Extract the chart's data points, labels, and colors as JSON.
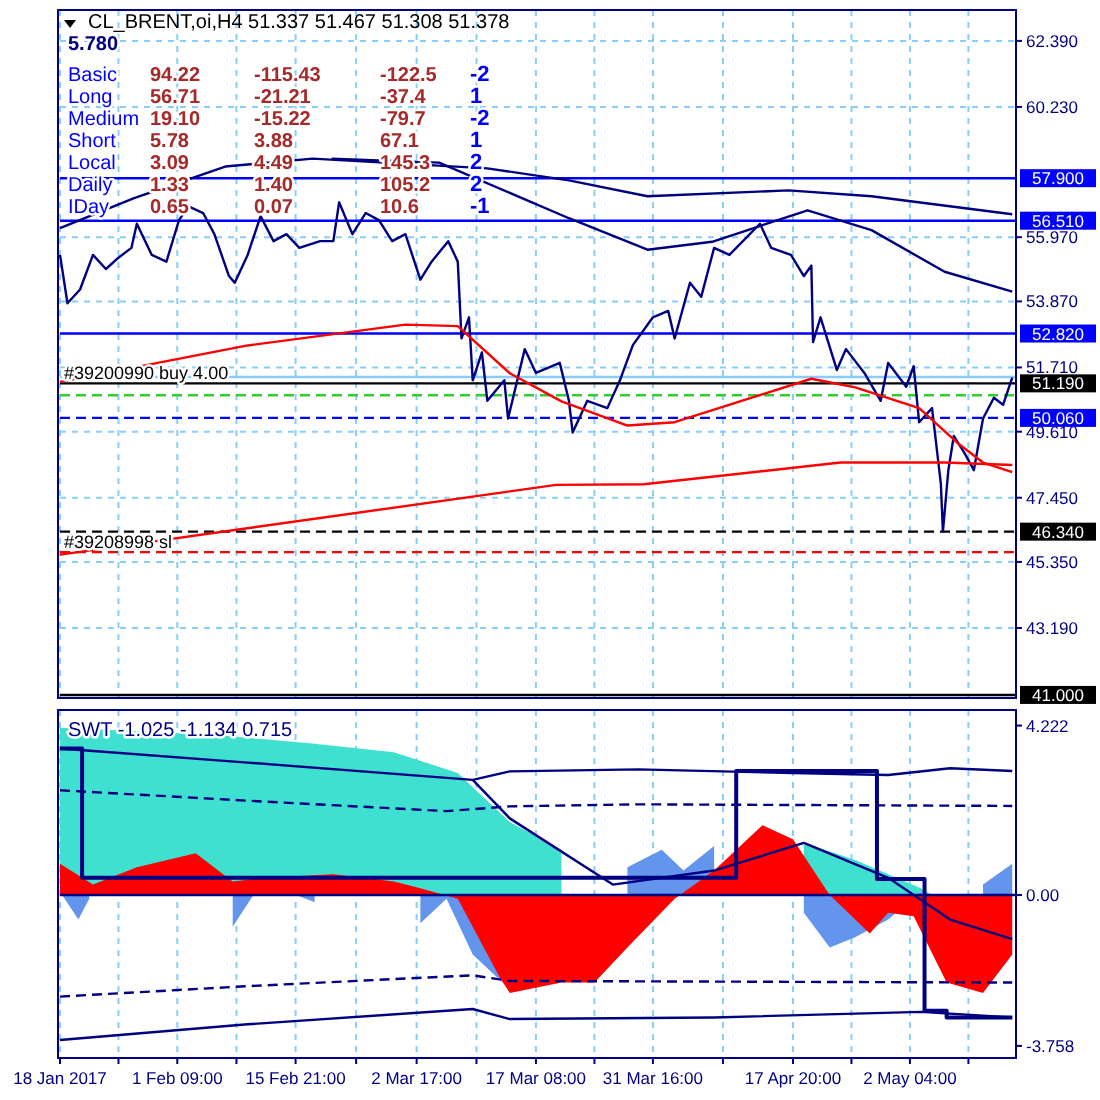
{
  "chart_data": [
    {
      "type": "line",
      "title": "CL_BRENT,oi,H4 51.337 51.467 51.308 51.378",
      "xlim": [
        "2017-01-18T00:00",
        "2017-05-15T04:00"
      ],
      "ylim": [
        40.9,
        63.4
      ],
      "xticks": [
        {
          "value": "2017-01-18T00:00",
          "label": null
        },
        {
          "value": "2017-01-25T04:00",
          "label": null
        },
        {
          "value": "2017-02-01T09:00",
          "label": null
        },
        {
          "value": "2017-02-08T15:00",
          "label": null
        },
        {
          "value": "2017-02-15T21:00",
          "label": null
        },
        {
          "value": "2017-02-23T07:00",
          "label": null
        },
        {
          "value": "2017-03-02T17:00",
          "label": null
        },
        {
          "value": "2017-03-10T01:00",
          "label": null
        },
        {
          "value": "2017-03-17T08:00",
          "label": null
        },
        {
          "value": "2017-03-24T12:00",
          "label": null
        },
        {
          "value": "2017-03-31T16:00",
          "label": null
        },
        {
          "value": "2017-04-09T06:00",
          "label": null
        },
        {
          "value": "2017-04-17T20:00",
          "label": null
        },
        {
          "value": "2017-04-25T00:00",
          "label": null
        },
        {
          "value": "2017-05-02T04:00",
          "label": null
        },
        {
          "value": "2017-05-09T08:00",
          "label": null
        }
      ],
      "yticks": [
        {
          "value": 62.39,
          "label": "62.390"
        },
        {
          "value": 60.23,
          "label": "60.230"
        },
        {
          "value": 55.97,
          "label": "55.970"
        },
        {
          "value": 53.87,
          "label": "53.870"
        },
        {
          "value": 51.71,
          "label": "51.710"
        },
        {
          "value": 49.61,
          "label": "49.610"
        },
        {
          "value": 47.45,
          "label": "47.450"
        },
        {
          "value": 45.35,
          "label": "45.350"
        },
        {
          "value": 43.19,
          "label": "43.190"
        }
      ],
      "tick_labels": "y",
      "grid": true,
      "series": [
        {
          "color": "#000080",
          "x": [
            "2017-01-18T00:00",
            "2017-01-18T22:00",
            "2017-01-20T11:00",
            "2017-01-22T01:00",
            "2017-01-23T15:00",
            "2017-01-25T04:00",
            "2017-01-26T18:00",
            "2017-01-27T10:00",
            "2017-01-29T06:00",
            "2017-01-31T01:00",
            "2017-02-01T14:00",
            "2017-02-02T18:00",
            "2017-02-04T13:00",
            "2017-02-05T22:00",
            "2017-02-07T17:00",
            "2017-02-08T10:00",
            "2017-02-10T00:00",
            "2017-02-11T14:00",
            "2017-02-13T04:00",
            "2017-02-14T18:00",
            "2017-02-16T08:00",
            "2017-02-18T21:00",
            "2017-02-20T12:00",
            "2017-02-21T05:00",
            "2017-02-22T20:00",
            "2017-02-24T11:00",
            "2017-02-26T02:00",
            "2017-02-27T17:00",
            "2017-03-01T08:00",
            "2017-03-03T04:00",
            "2017-03-04T13:00",
            "2017-03-06T14:00",
            "2017-03-07T18:00",
            "2017-03-08T05:00",
            "2017-03-09T03:00",
            "2017-03-09T14:00",
            "2017-03-10T17:00",
            "2017-03-11T09:00",
            "2017-03-13T11:00",
            "2017-03-13T22:00",
            "2017-03-15T23:00",
            "2017-03-17T08:00",
            "2017-03-20T06:00",
            "2017-03-21T09:00",
            "2017-03-21T20:00",
            "2017-03-23T15:00",
            "2017-03-26T02:00",
            "2017-03-27T15:00",
            "2017-03-29T05:00",
            "2017-03-31T16:00",
            "2017-04-02T13:00",
            "2017-04-03T08:00",
            "2017-04-05T05:00",
            "2017-04-06T14:00",
            "2017-04-08T04:00",
            "2017-04-10T01:00",
            "2017-04-13T19:00",
            "2017-04-15T04:00",
            "2017-04-17T14:00",
            "2017-04-19T04:00",
            "2017-04-20T02:00",
            "2017-04-20T07:00",
            "2017-04-21T05:00",
            "2017-04-23T05:00",
            "2017-04-24T08:00",
            "2017-04-26T14:00",
            "2017-04-28T14:00",
            "2017-04-29T12:00",
            "2017-05-01T17:00",
            "2017-05-02T15:00",
            "2017-05-03T07:00",
            "2017-05-04T21:00",
            "2017-05-05T23:00",
            "2017-05-06T05:00",
            "2017-05-06T21:00",
            "2017-05-07T13:00",
            "2017-05-08T21:00",
            "2017-05-10T00:00",
            "2017-05-11T03:00",
            "2017-05-12T11:00",
            "2017-05-13T14:00",
            "2017-05-14T17:00"
          ],
          "values": [
            55.39,
            53.81,
            54.26,
            55.39,
            54.93,
            55.3,
            55.62,
            56.41,
            55.39,
            55.17,
            56.53,
            56.98,
            56.76,
            56.07,
            54.7,
            54.48,
            55.39,
            56.66,
            55.84,
            56.07,
            55.62,
            55.84,
            55.84,
            57.11,
            56.07,
            56.76,
            56.53,
            55.84,
            56.07,
            54.58,
            55.17,
            55.84,
            55.17,
            52.66,
            53.35,
            51.29,
            52.2,
            50.62,
            51.29,
            50.04,
            52.31,
            51.53,
            51.86,
            50.62,
            49.58,
            50.62,
            50.38,
            51.29,
            52.44,
            53.35,
            53.56,
            52.66,
            54.48,
            54.02,
            55.62,
            55.39,
            56.41,
            55.62,
            55.39,
            54.7,
            55.04,
            52.54,
            53.35,
            51.63,
            52.31,
            51.53,
            50.62,
            51.86,
            51.08,
            51.75,
            49.92,
            50.38,
            47.9,
            46.34,
            48.35,
            49.47,
            48.9,
            48.35,
            50.04,
            50.72,
            50.49,
            51.38
          ]
        },
        {
          "color": "#000080",
          "x": [
            "2017-01-18T00:00",
            "2017-01-27T00:00",
            "2017-02-07T06:00",
            "2017-02-17T23:00",
            "2017-03-11T09:00",
            "2017-03-21T09:00",
            "2017-03-31T00:00",
            "2017-04-17T07:00",
            "2017-04-27T11:00",
            "2017-05-14T17:00"
          ],
          "values": [
            56.27,
            57.24,
            58.28,
            58.54,
            58.22,
            57.83,
            57.31,
            57.5,
            57.31,
            56.72
          ]
        },
        {
          "color": "#000080",
          "x": [
            "2017-02-20T07:00",
            "2017-03-05T11:00",
            "2017-03-21T09:00",
            "2017-03-31T00:00",
            "2017-04-07T22:00",
            "2017-04-19T15:00",
            "2017-04-27T11:00",
            "2017-05-06T10:00",
            "2017-05-14T17:00"
          ],
          "values": [
            58.54,
            58.41,
            56.59,
            55.56,
            55.82,
            56.85,
            56.2,
            54.84,
            54.19
          ]
        },
        {
          "color": "#ff0000",
          "x": [
            "2017-01-18T00:00",
            "2017-02-10T00:00",
            "2017-03-01T08:00",
            "2017-03-07T18:00",
            "2017-03-14T03:00",
            "2017-03-20T11:00",
            "2017-03-28T13:00",
            "2017-04-03T08:00",
            "2017-04-20T02:00",
            "2017-04-25T11:00",
            "2017-05-03T07:00",
            "2017-05-08T00:00",
            "2017-05-11T03:00",
            "2017-05-14T17:00"
          ],
          "values": [
            51.24,
            52.43,
            53.11,
            53.06,
            51.52,
            50.6,
            49.81,
            49.92,
            51.34,
            51.06,
            50.38,
            49.24,
            48.6,
            48.29
          ]
        },
        {
          "color": "#ff0000",
          "x": [
            "2017-01-18T00:00",
            "2017-03-19T19:00",
            "2017-03-30T13:00",
            "2017-04-23T16:00",
            "2017-05-06T10:00",
            "2017-05-14T17:00"
          ],
          "values": [
            45.59,
            47.87,
            47.89,
            48.6,
            48.6,
            48.52
          ]
        }
      ],
      "ref_lines": [
        {
          "axis": "y",
          "value": 57.9,
          "label": "57.900",
          "color": "#0000ff",
          "line_style": "solid"
        },
        {
          "axis": "y",
          "value": 56.51,
          "label": "56.510",
          "color": "#0000ff",
          "line_style": "solid"
        },
        {
          "axis": "y",
          "value": 52.82,
          "label": "52.820",
          "color": "#0000ff",
          "line_style": "solid"
        },
        {
          "axis": "y",
          "value": 51.4,
          "color": "#87cefa",
          "line_style": "solid"
        },
        {
          "axis": "y",
          "value": 51.19,
          "label": "51.190",
          "color": "#000000",
          "line_style": "solid"
        },
        {
          "axis": "y",
          "value": 50.8,
          "color": "#32cd32",
          "line_style": "dashed"
        },
        {
          "axis": "y",
          "value": 50.06,
          "label": "50.060",
          "color": "#0000ff",
          "line_style": "dashed"
        },
        {
          "axis": "y",
          "value": 46.34,
          "label": "46.340",
          "color": "#000000",
          "line_style": "dashed"
        },
        {
          "axis": "y",
          "value": 45.67,
          "color": "#ff0000",
          "line_style": "dashed"
        },
        {
          "axis": "y",
          "value": 41.0,
          "label": "41.000",
          "color": "#000000",
          "line_style": "solid"
        }
      ],
      "annotations": [
        "5.780",
        "Basic 94.22 -115.43 -122.5 -2",
        "Long 56.71 -21.21 -37.4 1",
        "Medium 19.10 -15.22 -79.7 -2",
        "Short 5.78 3.88 67.1 1",
        "Local 3.09 4.49 145.3 2",
        "Daily 1.33 1.40 105.2 2",
        "IDay 0.65 0.07 10.6 -1",
        {
          "text": "#39200990 buy 4.00",
          "x": "2017-01-18T00:00",
          "y": 51.19
        },
        {
          "text": "#39208998 sl",
          "x": "2017-01-18T00:00",
          "y": 45.67
        }
      ]
    },
    {
      "type": "line",
      "title": "SWT -1.025 -1.134 0.715",
      "xlim": [
        "2017-01-18T00:00",
        "2017-05-15T04:00"
      ],
      "ylim": [
        -4.06,
        4.61
      ],
      "xticks": [
        {
          "value": "2017-01-18T00:00",
          "label": "18 Jan 2017"
        },
        {
          "value": "2017-01-25T04:00",
          "label": null
        },
        {
          "value": "2017-02-01T09:00",
          "label": "1 Feb 09:00"
        },
        {
          "value": "2017-02-08T15:00",
          "label": null
        },
        {
          "value": "2017-02-15T21:00",
          "label": "15 Feb 21:00"
        },
        {
          "value": "2017-02-23T07:00",
          "label": null
        },
        {
          "value": "2017-03-02T17:00",
          "label": "2 Mar 17:00"
        },
        {
          "value": "2017-03-10T01:00",
          "label": null
        },
        {
          "value": "2017-03-17T08:00",
          "label": "17 Mar 08:00"
        },
        {
          "value": "2017-03-24T12:00",
          "label": null
        },
        {
          "value": "2017-03-31T16:00",
          "label": "31 Mar 16:00"
        },
        {
          "value": "2017-04-09T06:00",
          "label": null
        },
        {
          "value": "2017-04-17T20:00",
          "label": "17 Apr 20:00"
        },
        {
          "value": "2017-04-25T00:00",
          "label": null
        },
        {
          "value": "2017-05-02T04:00",
          "label": "2 May 04:00"
        },
        {
          "value": "2017-05-09T08:00",
          "label": null
        }
      ],
      "yticks": [
        {
          "value": 4.222,
          "label": "4.222"
        },
        {
          "value": 0,
          "label": "0.00"
        },
        {
          "value": -3.758,
          "label": "-3.758"
        }
      ],
      "grid": "x",
      "series": [
        {
          "type": "area",
          "color": "#40e0d0",
          "x": [
            "2017-01-18T00:00",
            "2017-02-05T11:00",
            "2017-02-18T05:00",
            "2017-02-27T22:00",
            "2017-03-07T18:00",
            "2017-03-14T03:00",
            "2017-03-20T11:00",
            "2017-03-28T13:00",
            "2017-04-03T08:00",
            "2017-04-11T22:00",
            "2017-04-19T04:00",
            "2017-04-25T11:00",
            "2017-05-03T12:00",
            "2017-05-04T21:00",
            "2017-05-14T17:00"
          ],
          "values": [
            4.17,
            4.0,
            3.77,
            3.56,
            3.04,
            1.82,
            1.13,
            null,
            null,
            null,
            1.3,
            0.87,
            0.17,
            0,
            0
          ]
        },
        {
          "type": "area",
          "color": "#6495ed",
          "x": [
            "2017-01-18T00:00",
            "2017-01-20T06:00",
            "2017-01-21T14:00",
            "2017-01-25T04:00",
            "2017-01-29T06:00",
            "2017-02-03T15:00",
            "2017-02-08T04:00",
            "2017-02-11T19:00",
            "2017-02-18T05:00",
            "2017-02-24T16:00",
            "2017-03-03T04:00",
            "2017-03-06T09:00",
            "2017-03-09T14:00",
            "2017-03-14T03:00",
            "2017-03-18T06:00",
            "2017-03-22T06:00",
            "2017-03-24T12:00",
            "2017-03-28T13:00",
            "2017-04-01T18:00",
            "2017-04-04T10:00",
            "2017-04-08T04:00",
            "2017-04-11T22:00",
            "2017-04-15T17:00",
            "2017-04-19T04:00",
            "2017-04-22T08:00",
            "2017-04-25T11:00",
            "2017-04-29T12:00",
            "2017-05-03T12:00",
            "2017-05-05T18:00",
            "2017-05-08T00:00",
            "2017-05-11T03:00",
            "2017-05-14T17:00"
          ],
          "values": [
            0.08,
            -0.61,
            -0.09,
            null,
            null,
            null,
            -0.79,
            0.34,
            -0.18,
            null,
            -0.7,
            -0.09,
            -1.48,
            -2.35,
            null,
            null,
            null,
            0.69,
            1.13,
            0.61,
            1.22,
            null,
            null,
            -0.44,
            -1.31,
            -1.05,
            -0.61,
            0.08,
            null,
            null,
            0.26,
            0.78
          ]
        },
        {
          "type": "area",
          "color": "#ff0000",
          "x": [
            "2017-01-18T00:00",
            "2017-01-22T01:00",
            "2017-01-27T10:00",
            "2017-02-03T15:00",
            "2017-02-08T04:00",
            "2017-02-12T06:00",
            "2017-02-20T12:00",
            "2017-02-27T22:00",
            "2017-03-03T04:00",
            "2017-03-07T18:00",
            "2017-03-12T18:00",
            "2017-03-14T03:00",
            "2017-03-20T11:00",
            "2017-03-24T12:00",
            "2017-03-28T13:00",
            "2017-04-03T08:00",
            "2017-04-08T04:00",
            "2017-04-14T02:00",
            "2017-04-17T20:00",
            "2017-04-22T08:00",
            "2017-04-27T06:00",
            "2017-04-29T12:00",
            "2017-05-02T15:00",
            "2017-05-06T16:00",
            "2017-05-11T03:00",
            "2017-05-14T17:00"
          ],
          "values": [
            0.78,
            0.26,
            0.69,
            1.04,
            0.34,
            0.43,
            0.52,
            0.34,
            0.17,
            -0.09,
            -2.0,
            -2.44,
            -2.18,
            -2.18,
            -1.31,
            -0.09,
            0.61,
            1.74,
            1.39,
            0,
            -0.96,
            -0.44,
            -0.53,
            -2.18,
            -2.44,
            -1.48
          ]
        },
        {
          "type": "step",
          "color": "#000080",
          "x": [
            "2017-01-18T00:00",
            "2017-01-20T17:00",
            "2017-04-10T21:00",
            "2017-04-28T03:00",
            "2017-05-03T23:00",
            "2017-05-06T16:00",
            "2017-05-14T17:00"
          ],
          "values": [
            3.65,
            0.43,
            3.09,
            0.4,
            -2.88,
            -3.05,
            -3.05
          ]
        },
        {
          "color": "#000080",
          "x": [
            "2017-03-09T14:00",
            "2017-03-14T03:00",
            "2017-03-26T18:00",
            "2017-04-08T04:00",
            "2017-04-19T04:00",
            "2017-04-29T12:00",
            "2017-05-07T02:00",
            "2017-05-14T17:00"
          ],
          "values": [
            2.87,
            1.91,
            0.26,
            0.61,
            1.3,
            0.43,
            -0.61,
            -1.1
          ]
        },
        {
          "color": "#000080",
          "x": [
            "2017-01-18T00:00",
            "2017-02-10T00:00",
            "2017-03-09T14:00",
            "2017-03-14T03:00",
            "2017-03-29T21:00",
            "2017-04-17T20:00",
            "2017-04-29T12:00",
            "2017-05-07T02:00",
            "2017-05-14T17:00"
          ],
          "values": [
            3.65,
            3.3,
            2.87,
            3.08,
            3.13,
            3.04,
            2.99,
            3.16,
            3.09
          ]
        },
        {
          "color": "#000080",
          "line_style": "dashed",
          "x": [
            "2017-01-18T00:00",
            "2017-02-10T00:00",
            "2017-03-06T09:00",
            "2017-03-14T03:00",
            "2017-03-29T21:00",
            "2017-05-14T17:00"
          ],
          "values": [
            2.61,
            2.35,
            2.09,
            2.21,
            2.26,
            2.22
          ]
        },
        {
          "color": "#000080",
          "line_style": "dashed",
          "x": [
            "2017-01-18T00:00",
            "2017-02-10T00:00",
            "2017-03-09T14:00",
            "2017-03-14T03:00",
            "2017-05-14T17:00"
          ],
          "values": [
            -2.53,
            -2.27,
            -2.0,
            -2.14,
            -2.18
          ]
        },
        {
          "color": "#000080",
          "x": [
            "2017-01-18T00:00",
            "2017-02-10T00:00",
            "2017-03-09T14:00",
            "2017-03-14T03:00",
            "2017-04-08T04:00",
            "2017-05-03T12:00",
            "2017-05-14T17:00"
          ],
          "values": [
            -3.61,
            -3.22,
            -2.84,
            -3.09,
            -3.05,
            -2.91,
            -3.05
          ]
        }
      ],
      "ref_lines": [
        {
          "axis": "y",
          "value": 0,
          "color": "#000080",
          "line_style": "solid"
        }
      ]
    }
  ]
}
